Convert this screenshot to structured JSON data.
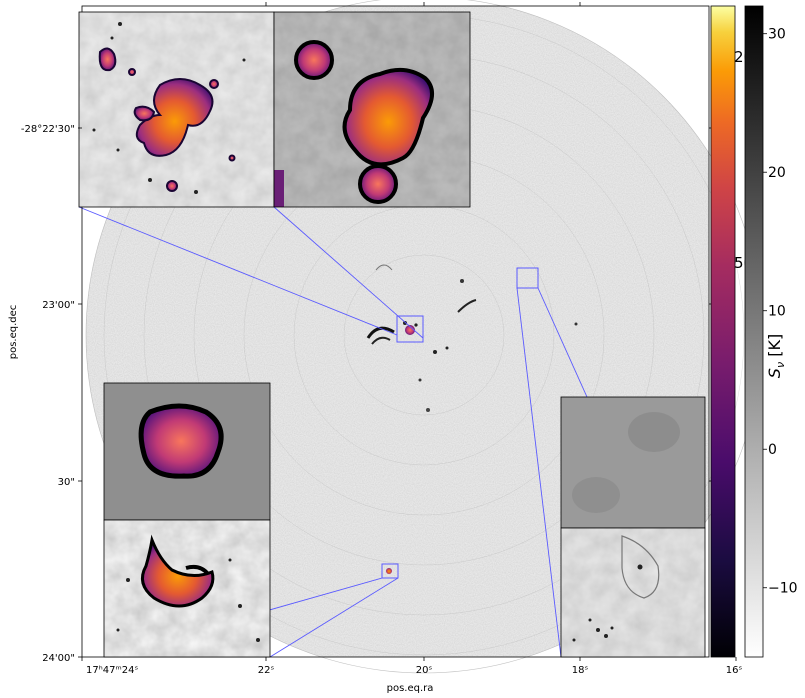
{
  "chart_data": {
    "type": "heatmap",
    "title": "",
    "xlabel": "pos.eq.ra",
    "ylabel": "pos.eq.dec",
    "x_ticks": [
      "17ʰ47ᵐ24ˢ",
      "22ˢ",
      "20ˢ",
      "18ˢ",
      "16ˢ"
    ],
    "y_ticks": [
      "-28°22'30\"",
      "23'00\"",
      "30\"",
      "24'00\""
    ],
    "colorbar_inner": {
      "colormap": "inferno",
      "ticks": [
        50,
        200
      ]
    },
    "colorbar_outer": {
      "colormap": "gray",
      "label": "S_ν [K]",
      "label_main": "S",
      "label_sub": "ν",
      "label_unit": " [K]",
      "ticks": [
        -10,
        0,
        10,
        20,
        30
      ],
      "range": [
        -15,
        32
      ]
    },
    "insets": [
      {
        "name": "top-left-pair",
        "colormap": "gray+inferno"
      },
      {
        "name": "bottom-left-pair",
        "colormap": "gray+inferno"
      },
      {
        "name": "bottom-right-pair",
        "colormap": "gray"
      }
    ]
  },
  "colors": {
    "zoom_line": "#5a5aff",
    "background": "#ffffff"
  }
}
